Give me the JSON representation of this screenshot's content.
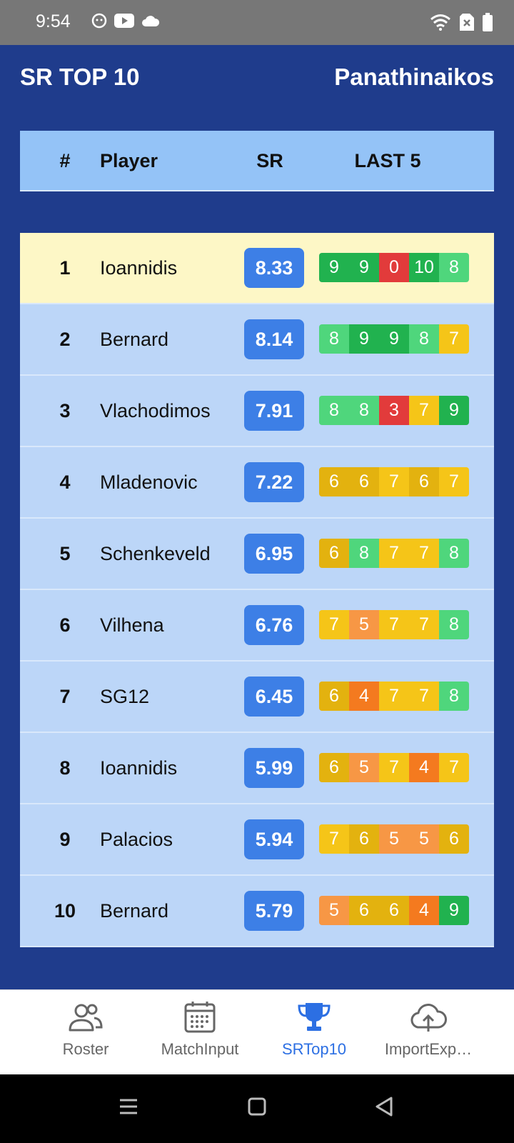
{
  "status_bar": {
    "time": "9:54"
  },
  "header": {
    "title": "SR TOP 10",
    "team": "Panathinaikos"
  },
  "table": {
    "columns": {
      "rank": "#",
      "player": "Player",
      "sr": "SR",
      "last5": "LAST 5"
    },
    "rows": [
      {
        "rank": "1",
        "player": "Ioannidis",
        "sr": "8.33",
        "last5": [
          "9",
          "9",
          "0",
          "10",
          "8"
        ],
        "highlight": true
      },
      {
        "rank": "2",
        "player": "Bernard",
        "sr": "8.14",
        "last5": [
          "8",
          "9",
          "9",
          "8",
          "7"
        ]
      },
      {
        "rank": "3",
        "player": "Vlachodimos",
        "sr": "7.91",
        "last5": [
          "8",
          "8",
          "3",
          "7",
          "9"
        ]
      },
      {
        "rank": "4",
        "player": "Mladenovic",
        "sr": "7.22",
        "last5": [
          "6",
          "6",
          "7",
          "6",
          "7"
        ]
      },
      {
        "rank": "5",
        "player": "Schenkeveld",
        "sr": "6.95",
        "last5": [
          "6",
          "8",
          "7",
          "7",
          "8"
        ]
      },
      {
        "rank": "6",
        "player": "Vilhena",
        "sr": "6.76",
        "last5": [
          "7",
          "5",
          "7",
          "7",
          "8"
        ]
      },
      {
        "rank": "7",
        "player": "SG12",
        "sr": "6.45",
        "last5": [
          "6",
          "4",
          "7",
          "7",
          "8"
        ]
      },
      {
        "rank": "8",
        "player": "Ioannidis",
        "sr": "5.99",
        "last5": [
          "6",
          "5",
          "7",
          "4",
          "7"
        ]
      },
      {
        "rank": "9",
        "player": "Palacios",
        "sr": "5.94",
        "last5": [
          "7",
          "6",
          "5",
          "5",
          "6"
        ]
      },
      {
        "rank": "10",
        "player": "Bernard",
        "sr": "5.79",
        "last5": [
          "5",
          "6",
          "6",
          "4",
          "9"
        ]
      }
    ]
  },
  "score_colors": {
    "0": "#e23b3b",
    "3": "#e23b3b",
    "4": "#f47a1f",
    "5": "#f79745",
    "6": "#e3b20f",
    "7": "#f5c518",
    "8": "#4fd67c",
    "9": "#21b24f",
    "10": "#21b24f"
  },
  "bottom_nav": {
    "items": [
      {
        "label": "Roster",
        "icon": "users-icon",
        "active": false
      },
      {
        "label": "MatchInput",
        "icon": "calendar-icon",
        "active": false
      },
      {
        "label": "SRTop10",
        "icon": "trophy-icon",
        "active": true
      },
      {
        "label": "ImportExp…",
        "icon": "cloud-upload-icon",
        "active": false
      }
    ]
  },
  "colors": {
    "background": "#1f3c8c",
    "header_row": "#94c3f7",
    "row": "#bcd6f8",
    "highlight_row": "#fdf7c6",
    "sr_badge": "#3d7fe6",
    "active_nav": "#2c6fe3"
  }
}
